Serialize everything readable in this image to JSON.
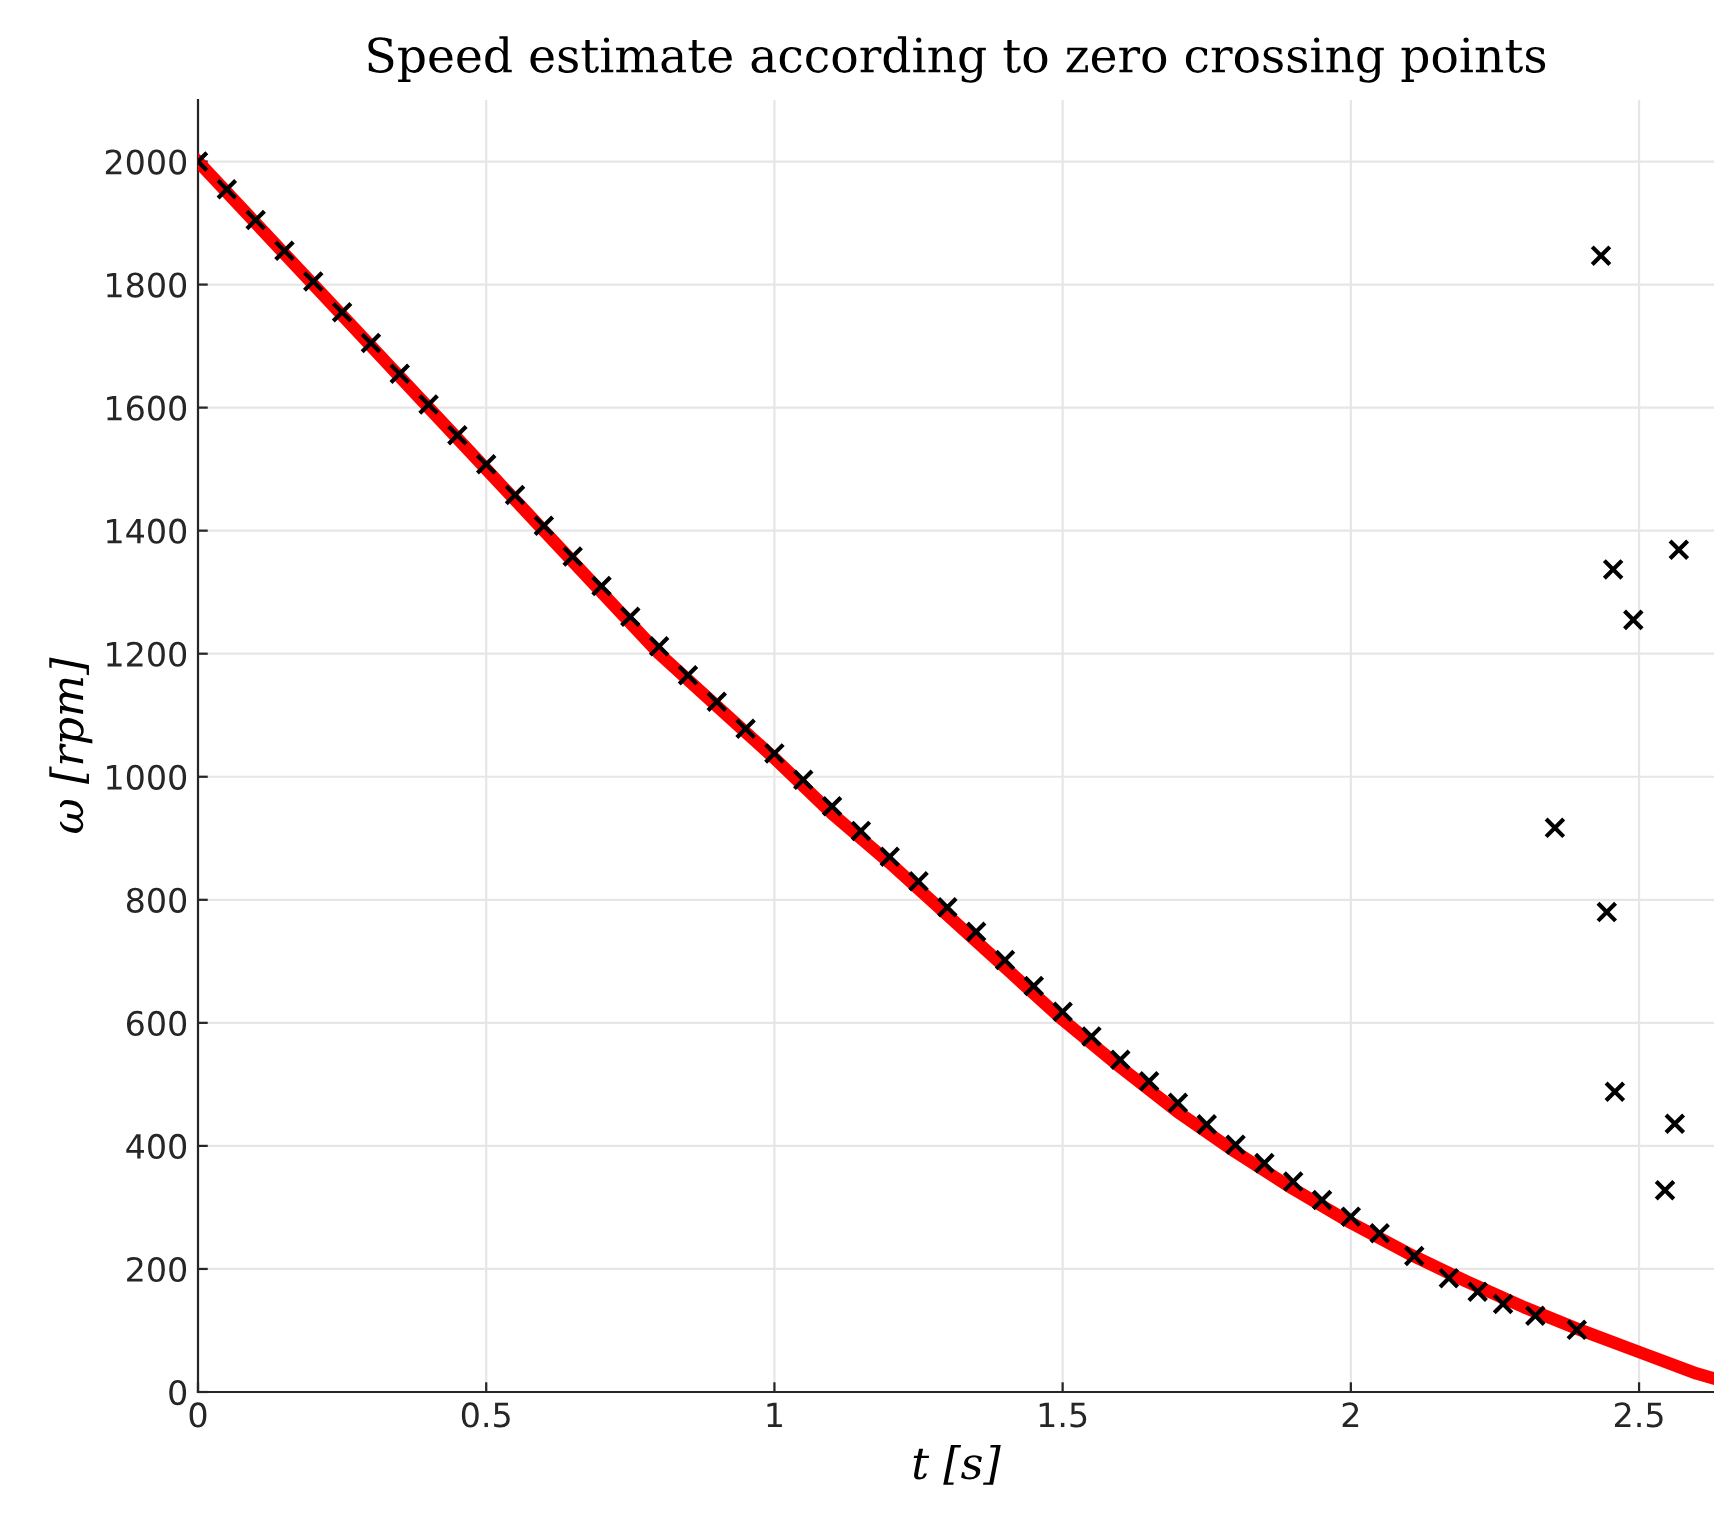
{
  "chart_data": {
    "type": "scatter",
    "title": "Speed estimate according to zero crossing points",
    "xlabel": "t [s]",
    "ylabel": "ω [rpm]",
    "xlim": [
      0,
      2.63
    ],
    "ylim": [
      0,
      2100
    ],
    "xticks": [
      0,
      0.5,
      1,
      1.5,
      2,
      2.5
    ],
    "yticks": [
      0,
      200,
      400,
      600,
      800,
      1000,
      1200,
      1400,
      1600,
      1800,
      2000
    ],
    "grid": true,
    "legend": false,
    "series": [
      {
        "marker": "cross",
        "color": "#000000",
        "x": [
          0,
          0.05,
          0.1,
          0.15,
          0.2,
          0.25,
          0.3,
          0.35,
          0.4,
          0.45,
          0.5,
          0.55,
          0.6,
          0.65,
          0.7,
          0.75,
          0.8,
          0.85,
          0.9,
          0.95,
          1.0,
          1.05,
          1.1,
          1.15,
          1.2,
          1.25,
          1.3,
          1.35,
          1.4,
          1.45,
          1.5,
          1.55,
          1.6,
          1.65,
          1.7,
          1.75,
          1.8,
          1.85,
          1.9,
          1.95,
          2.0,
          2.05,
          2.11,
          2.17,
          2.22,
          2.264,
          2.32,
          2.392,
          2.354,
          2.434,
          2.444,
          2.455,
          2.458,
          2.49,
          2.545,
          2.562,
          2.569
        ],
        "values": [
          2000,
          1955,
          1905,
          1855,
          1805,
          1755,
          1705,
          1655,
          1605,
          1555,
          1508,
          1458,
          1408,
          1358,
          1310,
          1260,
          1212,
          1165,
          1122,
          1078,
          1038,
          995,
          952,
          912,
          870,
          830,
          788,
          748,
          702,
          660,
          618,
          578,
          540,
          505,
          470,
          435,
          402,
          372,
          342,
          312,
          285,
          258,
          221,
          185,
          163,
          143,
          124,
          101,
          917,
          1847,
          780,
          1337,
          488,
          1255,
          328,
          436,
          1369
        ]
      },
      {
        "type": "line",
        "marker": "none",
        "line_style": "solid",
        "color": "#ff0000",
        "x": [
          0,
          0.1,
          0.2,
          0.3,
          0.4,
          0.5,
          0.6,
          0.7,
          0.8,
          0.9,
          1.0,
          1.1,
          1.2,
          1.3,
          1.4,
          1.5,
          1.6,
          1.7,
          1.8,
          1.9,
          2.0,
          2.1,
          2.2,
          2.3,
          2.4,
          2.5,
          2.6,
          2.63
        ],
        "values": [
          2000,
          1900,
          1800,
          1700,
          1600,
          1500,
          1400,
          1300,
          1200,
          1115,
          1030,
          940,
          860,
          775,
          690,
          605,
          528,
          455,
          390,
          330,
          275,
          225,
          180,
          138,
          100,
          65,
          30,
          22
        ]
      }
    ]
  }
}
